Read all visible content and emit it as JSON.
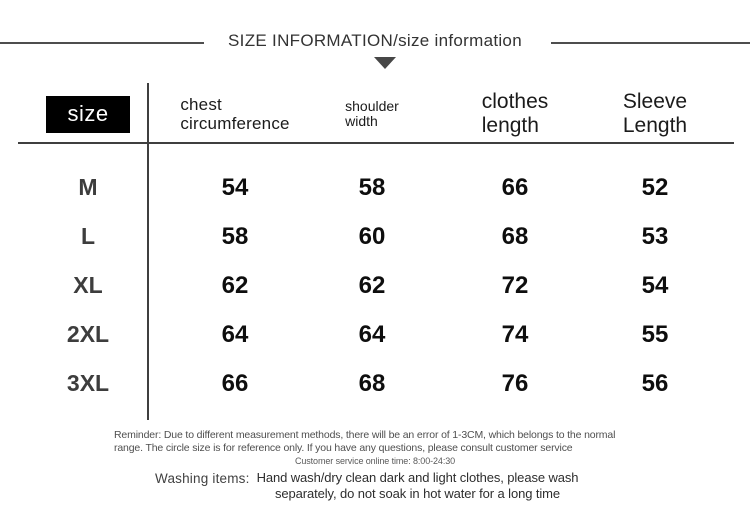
{
  "title": "SIZE INFORMATION/size information",
  "size_table": {
    "size_header": "size",
    "columns": [
      {
        "line1": "chest",
        "line2": "circumference"
      },
      {
        "line1": "shoulder",
        "line2": "width"
      },
      {
        "line1": "clothes",
        "line2": "length"
      },
      {
        "line1": "Sleeve",
        "line2": "Length"
      }
    ],
    "rows": [
      {
        "size": "M",
        "values": [
          "54",
          "58",
          "66",
          "52"
        ]
      },
      {
        "size": "L",
        "values": [
          "58",
          "60",
          "68",
          "53"
        ]
      },
      {
        "size": "XL",
        "values": [
          "62",
          "62",
          "72",
          "54"
        ]
      },
      {
        "size": "2XL",
        "values": [
          "64",
          "64",
          "74",
          "55"
        ]
      },
      {
        "size": "3XL",
        "values": [
          "66",
          "68",
          "76",
          "56"
        ]
      }
    ]
  },
  "footer": {
    "reminder_line1": "Reminder: Due to different measurement methods, there will be an error of 1-3CM, which belongs to the normal",
    "reminder_line2": "range. The circle size is for reference only. If you have any questions, please consult customer service",
    "customer_service_note": "Customer service online time: 8:00-24:30",
    "washing_label": "Washing items:",
    "washing_line1": "Hand wash/dry clean dark and light clothes, please wash",
    "washing_line2": "separately, do not soak in hot water for a long time"
  },
  "colors": {
    "size_header_bg": "#000000",
    "size_header_text": "#ffffff",
    "rule_line": "#3f3f3f",
    "text_primary": "#0e0e0e"
  }
}
